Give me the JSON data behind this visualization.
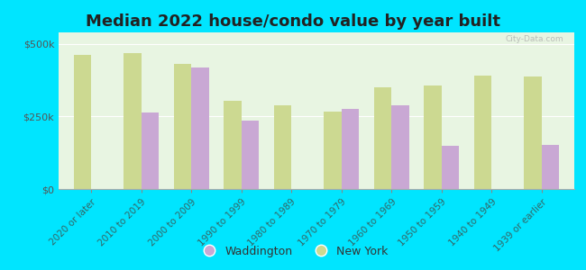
{
  "categories": [
    "2020 or later",
    "2010 to 2019",
    "2000 to 2009",
    "1990 to 1999",
    "1980 to 1989",
    "1970 to 1979",
    "1960 to 1969",
    "1950 to 1959",
    "1940 to 1949",
    "1939 or earlier"
  ],
  "waddington": [
    0,
    263000,
    418000,
    237000,
    0,
    275000,
    290000,
    148000,
    0,
    152000
  ],
  "new_york": [
    462000,
    470000,
    432000,
    305000,
    288000,
    268000,
    350000,
    358000,
    390000,
    388000
  ],
  "waddington_color": "#c9a8d4",
  "new_york_color": "#ccd991",
  "background_color": "#e8f5e2",
  "outer_background": "#00e5ff",
  "title": "Median 2022 house/condo value by year built",
  "title_fontsize": 13,
  "ylabel_ticks": [
    0,
    250000,
    500000
  ],
  "ylabel_labels": [
    "$0",
    "$250k",
    "$500k"
  ],
  "ylim": [
    0,
    540000
  ],
  "legend_waddington": "Waddington",
  "legend_new_york": "New York",
  "watermark": "City-Data.com"
}
